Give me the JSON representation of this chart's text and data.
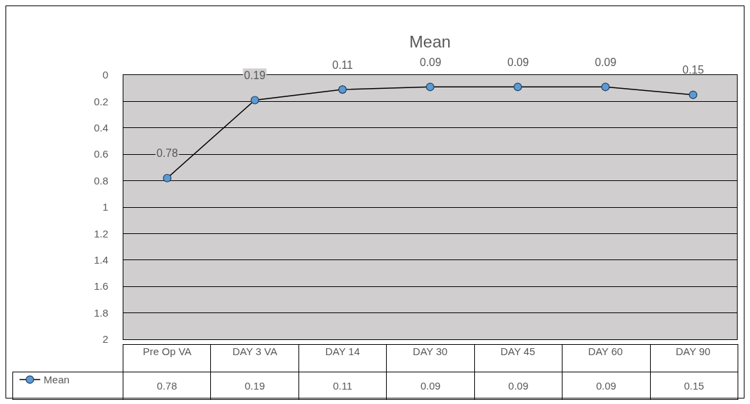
{
  "chart_data": {
    "type": "line",
    "title": "Mean",
    "categories": [
      "Pre Op VA",
      "DAY 3 VA",
      "DAY 14",
      "DAY 30",
      "DAY 45",
      "DAY 60",
      "DAY 90"
    ],
    "series": [
      {
        "name": "Mean",
        "color": "#5b9bd5",
        "values": [
          0.78,
          0.19,
          0.11,
          0.09,
          0.09,
          0.09,
          0.15
        ]
      }
    ],
    "annotations": [
      "0.78",
      "0.19",
      "0.11",
      "0.09",
      "0.09",
      "0.09",
      "0.15"
    ],
    "ylim": [
      2,
      0
    ],
    "yticks": [
      0,
      0.2,
      0.4,
      0.6,
      0.8,
      1,
      1.2,
      1.4,
      1.6,
      1.8,
      2
    ],
    "grid": "y",
    "legend": "bottom left",
    "marker": "circle",
    "line_style": "solid",
    "data_labels": true
  }
}
